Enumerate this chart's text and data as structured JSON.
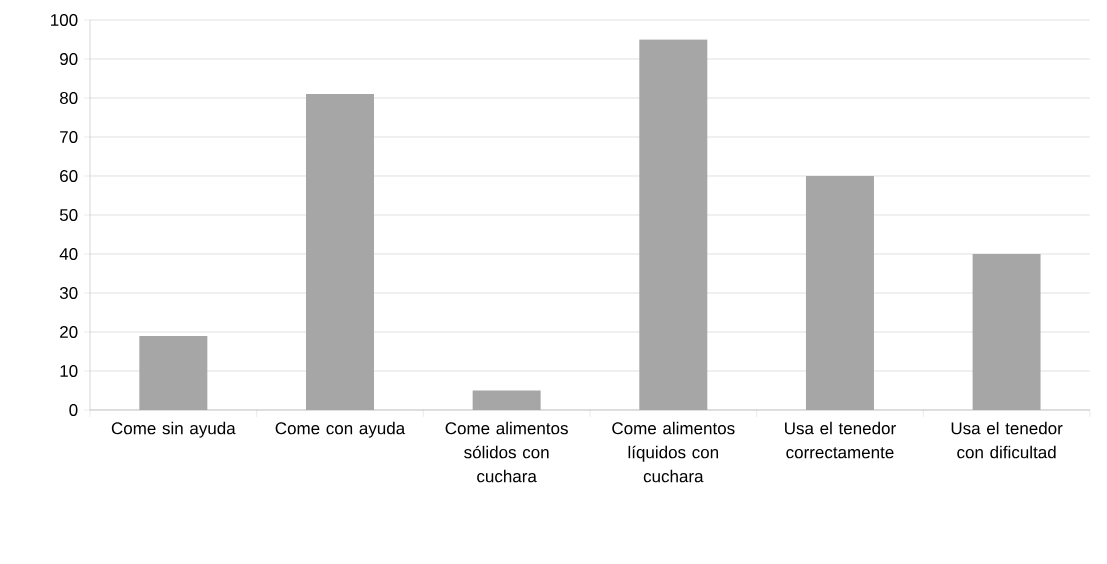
{
  "chart_data": {
    "type": "bar",
    "categories": [
      "Come sin ayuda",
      "Come con ayuda",
      "Come alimentos sólidos con cuchara",
      "Come alimentos líquidos con cuchara",
      "Usa el tenedor correctamente",
      "Usa el tenedor con dificultad"
    ],
    "values": [
      19,
      81,
      5,
      95,
      60,
      40
    ],
    "color": "#a6a6a6",
    "ylim": [
      0,
      100
    ],
    "yticks": [
      0,
      10,
      20,
      30,
      40,
      50,
      60,
      70,
      80,
      90,
      100
    ],
    "grid": "y"
  }
}
